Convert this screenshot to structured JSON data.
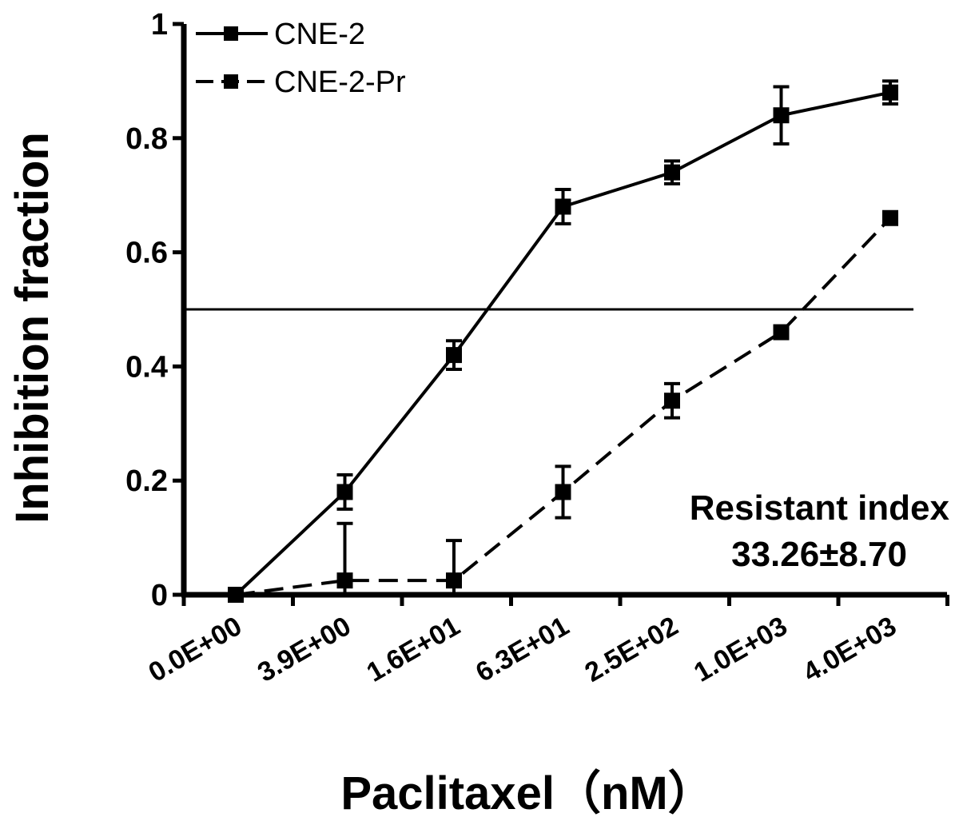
{
  "chart_data": {
    "type": "line",
    "xlabel": "Paclitaxel（nM）",
    "ylabel": "Inhibition fraction",
    "categories": [
      "0.0E+00",
      "3.9E+00",
      "1.6E+01",
      "6.3E+01",
      "2.5E+02",
      "1.0E+03",
      "4.0E+03"
    ],
    "y_ticks": [
      "0",
      "0.2",
      "0.4",
      "0.6",
      "0.8",
      "1"
    ],
    "ylim": [
      0,
      1
    ],
    "reference_line": 0.5,
    "legend_position": "top-left",
    "series": [
      {
        "name": "CNE-2",
        "style": "solid",
        "values": [
          0.0,
          0.18,
          0.42,
          0.68,
          0.74,
          0.84,
          0.88
        ],
        "errors": [
          0.0,
          0.03,
          0.025,
          0.03,
          0.02,
          0.05,
          0.02
        ]
      },
      {
        "name": "CNE-2-Pr",
        "style": "dashed",
        "values": [
          0.0,
          0.025,
          0.025,
          0.18,
          0.34,
          0.46,
          0.66
        ],
        "errors": [
          0.0,
          0.1,
          0.07,
          0.045,
          0.03,
          0.0,
          0.0
        ]
      }
    ],
    "annotations": [
      "Resistant index",
      "33.26±8.70"
    ]
  }
}
